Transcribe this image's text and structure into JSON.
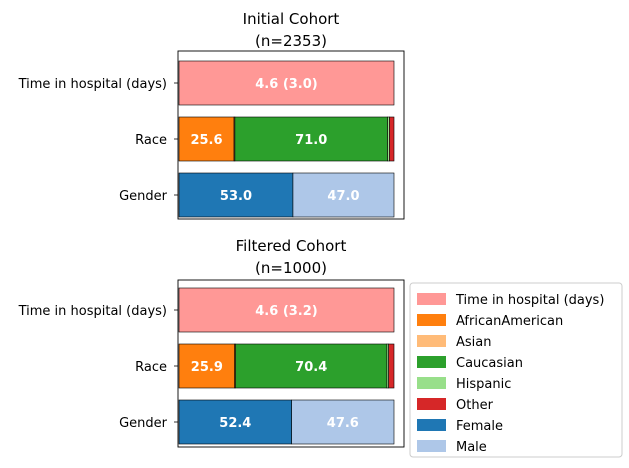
{
  "chart_data": {
    "type": "bar",
    "orientation": "horizontal-stacked-percent",
    "xlim": [
      0,
      100
    ],
    "grid": false,
    "legend_placement": "right of lower panel",
    "legend": [
      {
        "label": "Time in hospital (days)",
        "color": "#ff9896"
      },
      {
        "label": "AfricanAmerican",
        "color": "#ff7f0e"
      },
      {
        "label": "Asian",
        "color": "#ffbb78"
      },
      {
        "label": "Caucasian",
        "color": "#2ca02c"
      },
      {
        "label": "Hispanic",
        "color": "#98df8a"
      },
      {
        "label": "Other",
        "color": "#d62728"
      },
      {
        "label": "Female",
        "color": "#1f77b4"
      },
      {
        "label": "Male",
        "color": "#aec7e8"
      }
    ],
    "panels": [
      {
        "title_line1": "Initial Cohort",
        "title_line2": "(n=2353)",
        "categories": [
          "Time in hospital (days)",
          "Race",
          "Gender"
        ],
        "rows": [
          {
            "category": "Time in hospital (days)",
            "segments": [
              {
                "name": "Time in hospital (days)",
                "value": 100,
                "color": "#ff9896",
                "label": "4.6 (3.0)"
              }
            ]
          },
          {
            "category": "Race",
            "segments": [
              {
                "name": "AfricanAmerican",
                "value": 25.6,
                "color": "#ff7f0e",
                "label": "25.6"
              },
              {
                "name": "Asian",
                "value": 0.4,
                "color": "#ffbb78",
                "label": ""
              },
              {
                "name": "Caucasian",
                "value": 71.0,
                "color": "#2ca02c",
                "label": "71.0"
              },
              {
                "name": "Hispanic",
                "value": 0.9,
                "color": "#98df8a",
                "label": ""
              },
              {
                "name": "Other",
                "value": 2.1,
                "color": "#d62728",
                "label": ""
              }
            ]
          },
          {
            "category": "Gender",
            "segments": [
              {
                "name": "Female",
                "value": 53.0,
                "color": "#1f77b4",
                "label": "53.0"
              },
              {
                "name": "Male",
                "value": 47.0,
                "color": "#aec7e8",
                "label": "47.0"
              }
            ]
          }
        ]
      },
      {
        "title_line1": "Filtered Cohort",
        "title_line2": "(n=1000)",
        "categories": [
          "Time in hospital (days)",
          "Race",
          "Gender"
        ],
        "rows": [
          {
            "category": "Time in hospital (days)",
            "segments": [
              {
                "name": "Time in hospital (days)",
                "value": 100,
                "color": "#ff9896",
                "label": "4.6 (3.2)"
              }
            ]
          },
          {
            "category": "Race",
            "segments": [
              {
                "name": "AfricanAmerican",
                "value": 25.9,
                "color": "#ff7f0e",
                "label": "25.9"
              },
              {
                "name": "Asian",
                "value": 0.4,
                "color": "#ffbb78",
                "label": ""
              },
              {
                "name": "Caucasian",
                "value": 70.4,
                "color": "#2ca02c",
                "label": "70.4"
              },
              {
                "name": "Hispanic",
                "value": 0.8,
                "color": "#98df8a",
                "label": ""
              },
              {
                "name": "Other",
                "value": 2.5,
                "color": "#d62728",
                "label": ""
              }
            ]
          },
          {
            "category": "Gender",
            "segments": [
              {
                "name": "Female",
                "value": 52.4,
                "color": "#1f77b4",
                "label": "52.4"
              },
              {
                "name": "Male",
                "value": 47.6,
                "color": "#aec7e8",
                "label": "47.6"
              }
            ]
          }
        ]
      }
    ]
  }
}
